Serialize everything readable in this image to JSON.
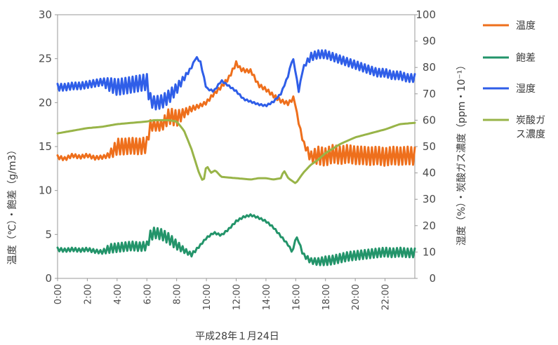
{
  "chart_data": {
    "type": "line",
    "xlabel": "平成28年１月24日",
    "ylabel_left": "温度（℃）・飽差（g/m3）",
    "ylabel_right": "湿度（%）・炭酸ガス濃度（ppm・10⁻¹）",
    "ylim_left": [
      0,
      30
    ],
    "ylim_right": [
      0,
      100
    ],
    "yticks_left": [
      "0",
      "5",
      "10",
      "15",
      "20",
      "25",
      "30"
    ],
    "yticks_right": [
      "0",
      "10",
      "20",
      "30",
      "40",
      "50",
      "60",
      "70",
      "80",
      "90",
      "100"
    ],
    "xticks": [
      "0:00",
      "2:00",
      "4:00",
      "6:00",
      "8:00",
      "10:00",
      "12:00",
      "14:00",
      "16:00",
      "18:00",
      "20:00",
      "22:00"
    ],
    "xlim_hours": [
      0,
      24
    ],
    "legend_position": "right",
    "series": [
      {
        "name": "温度",
        "color": "#ee6f1c",
        "axis": "left",
        "x": [
          0,
          0.5,
          1,
          1.5,
          2,
          2.5,
          3,
          3.3,
          3.7,
          4,
          4.5,
          5,
          5.5,
          6,
          6.2,
          6.5,
          7,
          7.5,
          8,
          8.5,
          9,
          9.5,
          10,
          10.5,
          11,
          11.5,
          12,
          12.3,
          12.7,
          13,
          13.5,
          14,
          14.5,
          15,
          15.5,
          15.9,
          16.1,
          16.5,
          17,
          17.5,
          18,
          18.5,
          19,
          19.5,
          20,
          20.5,
          21,
          21.5,
          22,
          22.5,
          23,
          23.5,
          24
        ],
        "values": [
          13.8,
          13.6,
          14.0,
          13.8,
          14.0,
          13.7,
          13.8,
          13.9,
          14.4,
          15.0,
          15.0,
          15.1,
          15.0,
          15.2,
          17.4,
          17.4,
          17.4,
          18.5,
          18.2,
          18.8,
          19.3,
          19.6,
          20.0,
          21.0,
          21.8,
          22.8,
          24.5,
          23.8,
          23.6,
          23.6,
          22.0,
          21.5,
          20.8,
          20.2,
          19.9,
          20.6,
          18.5,
          15.5,
          13.8,
          14.0,
          13.8,
          14.2,
          14.0,
          14.2,
          14.0,
          14.0,
          13.9,
          14.0,
          13.8,
          14.0,
          13.9,
          14.0,
          13.9
        ],
        "osc_amp": [
          0.2,
          0.2,
          0.2,
          0.2,
          0.2,
          0.2,
          0.2,
          0.2,
          0.6,
          0.9,
          0.9,
          0.9,
          0.9,
          0.9,
          0.6,
          0.6,
          0.6,
          0.9,
          0.9,
          0.5,
          0.3,
          0.2,
          0.2,
          0.2,
          0.2,
          0.2,
          0.2,
          0.2,
          0.2,
          0.2,
          0.2,
          0.2,
          0.2,
          0.2,
          0.2,
          0.2,
          0.2,
          0.2,
          0.6,
          1.0,
          1.0,
          1.0,
          1.0,
          1.0,
          1.0,
          1.0,
          1.0,
          1.0,
          1.0,
          1.0,
          1.0,
          1.0,
          1.0
        ]
      },
      {
        "name": "飽差",
        "color": "#23946a",
        "axis": "left",
        "x": [
          0,
          0.5,
          1,
          1.5,
          2,
          2.5,
          3,
          3.5,
          4,
          4.5,
          5,
          5.5,
          6,
          6.2,
          6.5,
          7,
          7.5,
          8,
          8.5,
          9,
          9.5,
          10,
          10.5,
          11,
          11.5,
          12,
          12.5,
          13,
          13.5,
          14,
          14.5,
          15,
          15.5,
          15.8,
          16,
          16.2,
          16.5,
          17,
          17.5,
          18,
          18.5,
          19,
          19.5,
          20,
          20.5,
          21,
          21.5,
          22,
          22.5,
          23,
          23.5,
          24
        ],
        "values": [
          3.3,
          3.2,
          3.3,
          3.2,
          3.3,
          3.1,
          3.0,
          3.4,
          3.5,
          3.6,
          3.7,
          3.6,
          3.7,
          4.8,
          5.2,
          5.0,
          4.5,
          3.8,
          3.2,
          2.7,
          3.6,
          4.6,
          5.2,
          4.9,
          5.6,
          6.5,
          7.0,
          7.2,
          6.9,
          6.5,
          5.8,
          4.8,
          3.8,
          2.9,
          4.8,
          4.2,
          2.7,
          2.0,
          1.9,
          2.0,
          2.1,
          2.3,
          2.5,
          2.6,
          2.7,
          2.8,
          2.9,
          3.0,
          2.9,
          3.0,
          2.9,
          2.9
        ],
        "osc_amp": [
          0.2,
          0.2,
          0.2,
          0.2,
          0.2,
          0.2,
          0.2,
          0.5,
          0.5,
          0.5,
          0.5,
          0.5,
          0.5,
          0.6,
          0.6,
          0.6,
          0.6,
          0.5,
          0.3,
          0.2,
          0.1,
          0.1,
          0.1,
          0.1,
          0.1,
          0.1,
          0.1,
          0.1,
          0.1,
          0.1,
          0.1,
          0.1,
          0.1,
          0.1,
          0.1,
          0.1,
          0.2,
          0.3,
          0.4,
          0.5,
          0.5,
          0.5,
          0.5,
          0.5,
          0.5,
          0.5,
          0.5,
          0.5,
          0.5,
          0.5,
          0.5,
          0.5
        ]
      },
      {
        "name": "湿度",
        "color": "#2f5ee8",
        "axis": "right",
        "x": [
          0,
          0.5,
          1,
          1.5,
          2,
          2.5,
          3,
          3.5,
          4,
          4.5,
          5,
          5.5,
          6,
          6.2,
          6.5,
          7,
          7.5,
          8,
          8.5,
          9,
          9.3,
          9.6,
          10,
          10.5,
          11,
          11.5,
          12,
          12.5,
          13,
          13.5,
          14,
          14.5,
          15,
          15.5,
          15.8,
          16,
          16.2,
          16.5,
          17,
          17.5,
          18,
          18.5,
          19,
          19.5,
          20,
          20.5,
          21,
          21.5,
          22,
          22.5,
          23,
          23.5,
          24
        ],
        "values": [
          72.5,
          72.5,
          73,
          73,
          73.5,
          74,
          74.5,
          73.5,
          72.5,
          73,
          73.5,
          74,
          74.5,
          68,
          66.5,
          67,
          69,
          72,
          76,
          80,
          84,
          82,
          72,
          71,
          75,
          73,
          71,
          68,
          67,
          66,
          65.5,
          67,
          70,
          77,
          84,
          78,
          71,
          80,
          84,
          85,
          85,
          84,
          83,
          82,
          81,
          80,
          79,
          78,
          78,
          77,
          77,
          76,
          76
        ],
        "osc_amp": [
          1.3,
          1.3,
          1.3,
          1.3,
          1.3,
          1.3,
          1.3,
          2.5,
          3.0,
          3.0,
          3.0,
          3.0,
          3.0,
          2.5,
          2.5,
          2.5,
          2.5,
          2.0,
          1.0,
          0.3,
          0.3,
          0.3,
          0.3,
          0.3,
          0.3,
          0.3,
          0.3,
          0.3,
          0.3,
          0.3,
          0.3,
          0.3,
          0.3,
          0.3,
          0.3,
          0.3,
          0.3,
          0.3,
          1.5,
          1.5,
          1.5,
          1.5,
          1.5,
          1.5,
          1.5,
          1.5,
          1.5,
          1.5,
          1.5,
          1.5,
          1.5,
          1.5,
          1.5
        ]
      },
      {
        "name": "炭酸ガス濃度",
        "color": "#98b448",
        "axis": "right",
        "x": [
          0,
          1,
          2,
          3,
          4,
          5,
          6,
          6.5,
          7,
          7.5,
          8,
          8.5,
          9,
          9.5,
          9.8,
          10,
          10.3,
          10.6,
          11,
          12,
          13,
          13.5,
          14,
          14.5,
          15,
          15.2,
          15.5,
          16,
          16.5,
          17,
          17.5,
          18,
          19,
          20,
          21,
          22,
          23,
          24
        ],
        "values": [
          55,
          56,
          57,
          57.5,
          58.5,
          59,
          59.5,
          60,
          60,
          60,
          59.5,
          56,
          49,
          40,
          36.5,
          43,
          40,
          41,
          38.5,
          38,
          37.5,
          38,
          38,
          37.5,
          38,
          41,
          38,
          36,
          40,
          43,
          45,
          47.5,
          51,
          53.5,
          55,
          56.5,
          58.5,
          59
        ],
        "osc_amp": [
          0,
          0,
          0,
          0,
          0,
          0,
          0,
          0,
          0,
          0,
          0,
          0,
          0,
          0,
          0,
          0,
          0,
          0,
          0,
          0,
          0,
          0,
          0,
          0,
          0,
          0,
          0,
          0,
          0,
          0,
          0,
          0,
          0,
          0,
          0,
          0,
          0,
          0
        ]
      }
    ]
  }
}
